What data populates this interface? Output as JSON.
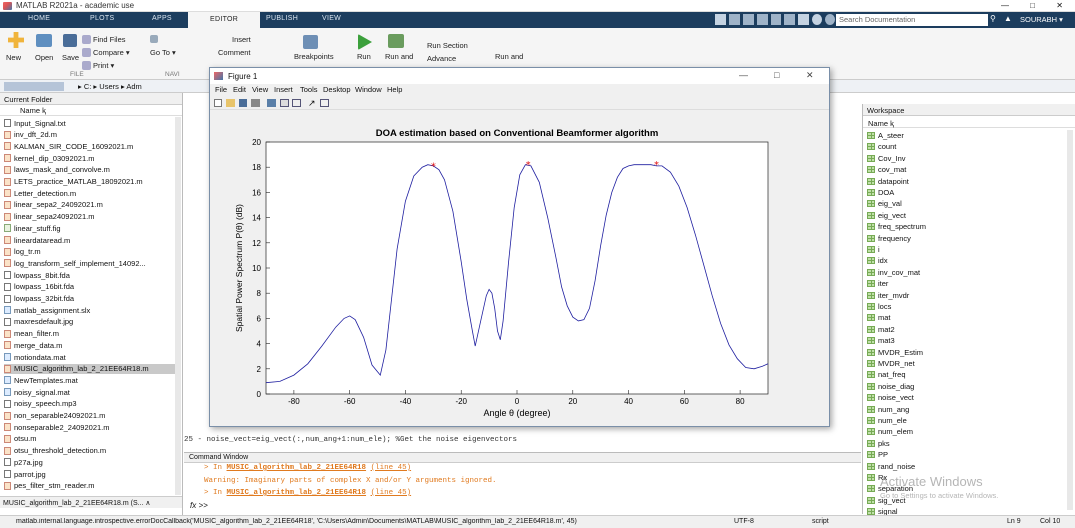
{
  "app": {
    "title": "MATLAB R2021a - academic use",
    "search_placeholder": "Search Documentation",
    "user": "SOURABH ▾",
    "minimize": "—",
    "maximize": "□",
    "close": "✕"
  },
  "tabs": [
    "HOME",
    "PLOTS",
    "APPS",
    "EDITOR",
    "PUBLISH",
    "VIEW"
  ],
  "ribbon": {
    "new": "New",
    "open": "Open",
    "save": "Save",
    "find_files": "Find Files",
    "compare": "Compare ▾",
    "print": "Print ▾",
    "go_to": "Go To ▾",
    "insert": "Insert",
    "comment": "Comment",
    "file_group": "FILE",
    "navigate_group": "NAVI",
    "breakpoints": "Breakpoints",
    "run": "Run",
    "run_and": "Run and",
    "run_section": "Run Section",
    "advance": "Advance",
    "run_and2": "Run and"
  },
  "address": {
    "path": "▸ C: ▸ Users ▸ Adm"
  },
  "current_folder": {
    "title": "Current Folder",
    "col_name": "Name ⱪ",
    "files": [
      {
        "name": "Input_Signal.txt",
        "t": "f"
      },
      {
        "name": "inv_dft_2d.m",
        "t": "m"
      },
      {
        "name": "KALMAN_SIR_CODE_16092021.m",
        "t": "m"
      },
      {
        "name": "kernel_dip_03092021.m",
        "t": "m"
      },
      {
        "name": "laws_mask_and_convolve.m",
        "t": "m"
      },
      {
        "name": "LETS_practice_MATLAB_18092021.m",
        "t": "m"
      },
      {
        "name": "Letter_detection.m",
        "t": "m"
      },
      {
        "name": "linear_sepa2_24092021.m",
        "t": "m"
      },
      {
        "name": "linear_sepa24092021.m",
        "t": "m"
      },
      {
        "name": "linear_stuff.fig",
        "t": "g"
      },
      {
        "name": "lineardataread.m",
        "t": "m"
      },
      {
        "name": "log_tr.m",
        "t": "m"
      },
      {
        "name": "log_transform_self_implement_14092...",
        "t": "m"
      },
      {
        "name": "lowpass_8bit.fda",
        "t": "f"
      },
      {
        "name": "lowpass_16bit.fda",
        "t": "f"
      },
      {
        "name": "lowpass_32bit.fda",
        "t": "f"
      },
      {
        "name": "matlab_assignment.slx",
        "t": "d"
      },
      {
        "name": "maxresdefault.jpg",
        "t": "f"
      },
      {
        "name": "mean_filter.m",
        "t": "m"
      },
      {
        "name": "merge_data.m",
        "t": "m"
      },
      {
        "name": "motiondata.mat",
        "t": "d"
      },
      {
        "name": "MUSIC_algorithm_lab_2_21EE64R18.m",
        "t": "m",
        "sel": true
      },
      {
        "name": "NewTemplates.mat",
        "t": "d"
      },
      {
        "name": "noisy_signal.mat",
        "t": "d"
      },
      {
        "name": "noisy_speech.mp3",
        "t": "f"
      },
      {
        "name": "non_separable24092021.m",
        "t": "m"
      },
      {
        "name": "nonseparable2_24092021.m",
        "t": "m"
      },
      {
        "name": "otsu.m",
        "t": "m"
      },
      {
        "name": "otsu_threshold_detection.m",
        "t": "m"
      },
      {
        "name": "p27a.jpg",
        "t": "f"
      },
      {
        "name": "parrot.jpg",
        "t": "f"
      },
      {
        "name": "pes_filter_stm_reader.m",
        "t": "m"
      }
    ],
    "footer": "MUSIC_algorithm_lab_2_21EE64R18.m (S...  ∧"
  },
  "editor": {
    "code_line": "25 -      noise_vect=eig_vect(:,num_ang+1:num_ele); %Get the noise eigenvectors"
  },
  "command_window": {
    "title": "Command Window",
    "lines": [
      "> In MUSIC_algorithm_lab_2_21EE64R18 (line 45)",
      "Warning: Imaginary parts of complex X and/or Y arguments ignored.",
      "> In MUSIC_algorithm_lab_2_21EE64R18 (line 45)"
    ],
    "prompt": "fx >>",
    "warning_prefix": "Warning: Imaginary parts of complex X and/or Y arguments ignored.",
    "in_prefix": "> In ",
    "link": "MUSIC_algorithm_lab_2_21EE64R18",
    "line_ref": "(line 45)"
  },
  "workspace": {
    "title": "Workspace",
    "col_name": "Name ⱪ",
    "vars": [
      "A_steer",
      "count",
      "Cov_Inv",
      "cov_mat",
      "datapoint",
      "DOA",
      "eig_val",
      "eig_vect",
      "freq_spectrum",
      "frequency",
      "i",
      "idx",
      "inv_cov_mat",
      "iter",
      "iter_mvdr",
      "locs",
      "mat",
      "mat2",
      "mat3",
      "MVDR_Estim",
      "MVDR_net",
      "nat_freq",
      "noise_diag",
      "noise_vect",
      "num_ang",
      "num_ele",
      "num_elem",
      "pks",
      "PP",
      "rand_noise",
      "Rx",
      "separation",
      "sig_vect",
      "signal"
    ]
  },
  "watermark": {
    "line1": "Activate Windows",
    "line2": "Go to Settings to activate Windows."
  },
  "statusbar": {
    "text": "matlab.internal.language.introspective.errorDocCallback('MUSIC_algorithm_lab_2_21EE64R18', 'C:\\Users\\Admin\\Documents\\MATLAB\\MUSIC_algorithm_lab_2_21EE64R18.m', 45)",
    "encoding": "UTF-8",
    "mode": "script",
    "ln": "Ln  9",
    "col": "Col  10"
  },
  "figure": {
    "title": "Figure 1",
    "menus": [
      "File",
      "Edit",
      "View",
      "Insert",
      "Tools",
      "Desktop",
      "Window",
      "Help"
    ]
  },
  "chart_data": {
    "type": "line",
    "title": "DOA estimation based on Conventional Beamformer algorithm",
    "xlabel": "Angle θ (degree)",
    "ylabel": "Spatial Power Spectrum P(θ) (dB)",
    "xlim": [
      -90,
      90
    ],
    "ylim": [
      0,
      20
    ],
    "xticks": [
      -80,
      -60,
      -40,
      -20,
      0,
      20,
      40,
      60,
      80
    ],
    "yticks": [
      0,
      2,
      4,
      6,
      8,
      10,
      12,
      14,
      16,
      18,
      20
    ],
    "series": [
      {
        "name": "P",
        "color": "#1f1fa0",
        "x": [
          -90,
          -85,
          -80,
          -75,
          -70,
          -65,
          -62,
          -60,
          -58,
          -55,
          -52,
          -49,
          -47,
          -45,
          -43,
          -40,
          -37,
          -34,
          -32,
          -30,
          -28,
          -26,
          -23,
          -20,
          -18,
          -16,
          -15,
          -13,
          -11,
          -10,
          -9,
          -8,
          -7,
          -6,
          -5,
          -3,
          -1,
          1,
          3,
          5,
          8,
          11,
          14,
          16,
          18,
          20,
          22,
          24,
          26,
          28,
          30,
          32,
          34,
          36,
          38,
          40,
          42,
          44,
          46,
          48,
          50,
          52,
          55,
          58,
          61,
          64,
          67,
          70,
          73,
          76,
          79,
          82,
          85,
          88,
          90
        ],
        "y": [
          0.9,
          1.0,
          1.5,
          2.4,
          3.8,
          5.3,
          6.0,
          6.2,
          5.9,
          4.5,
          2.3,
          1.5,
          3.5,
          7.5,
          11.5,
          15.3,
          17.3,
          18.0,
          18.2,
          18.1,
          17.8,
          17.0,
          14.5,
          10.5,
          7.5,
          5.0,
          3.8,
          5.8,
          7.8,
          8.3,
          8.0,
          6.8,
          5.0,
          4.3,
          5.8,
          10.5,
          14.8,
          17.4,
          18.2,
          18.1,
          16.8,
          14.0,
          10.8,
          8.5,
          7.0,
          6.1,
          5.8,
          5.9,
          6.8,
          9.0,
          11.8,
          14.2,
          16.0,
          17.2,
          17.9,
          18.1,
          18.2,
          18.2,
          18.2,
          18.2,
          18.1,
          18.1,
          17.6,
          16.5,
          14.8,
          12.6,
          10.2,
          7.8,
          5.6,
          3.9,
          2.8,
          2.1,
          2.0,
          2.2,
          2.4
        ]
      }
    ],
    "peaks": [
      {
        "x": -30,
        "y": 18.1
      },
      {
        "x": 4,
        "y": 18.2
      },
      {
        "x": 50,
        "y": 18.2
      }
    ],
    "grid": false
  }
}
